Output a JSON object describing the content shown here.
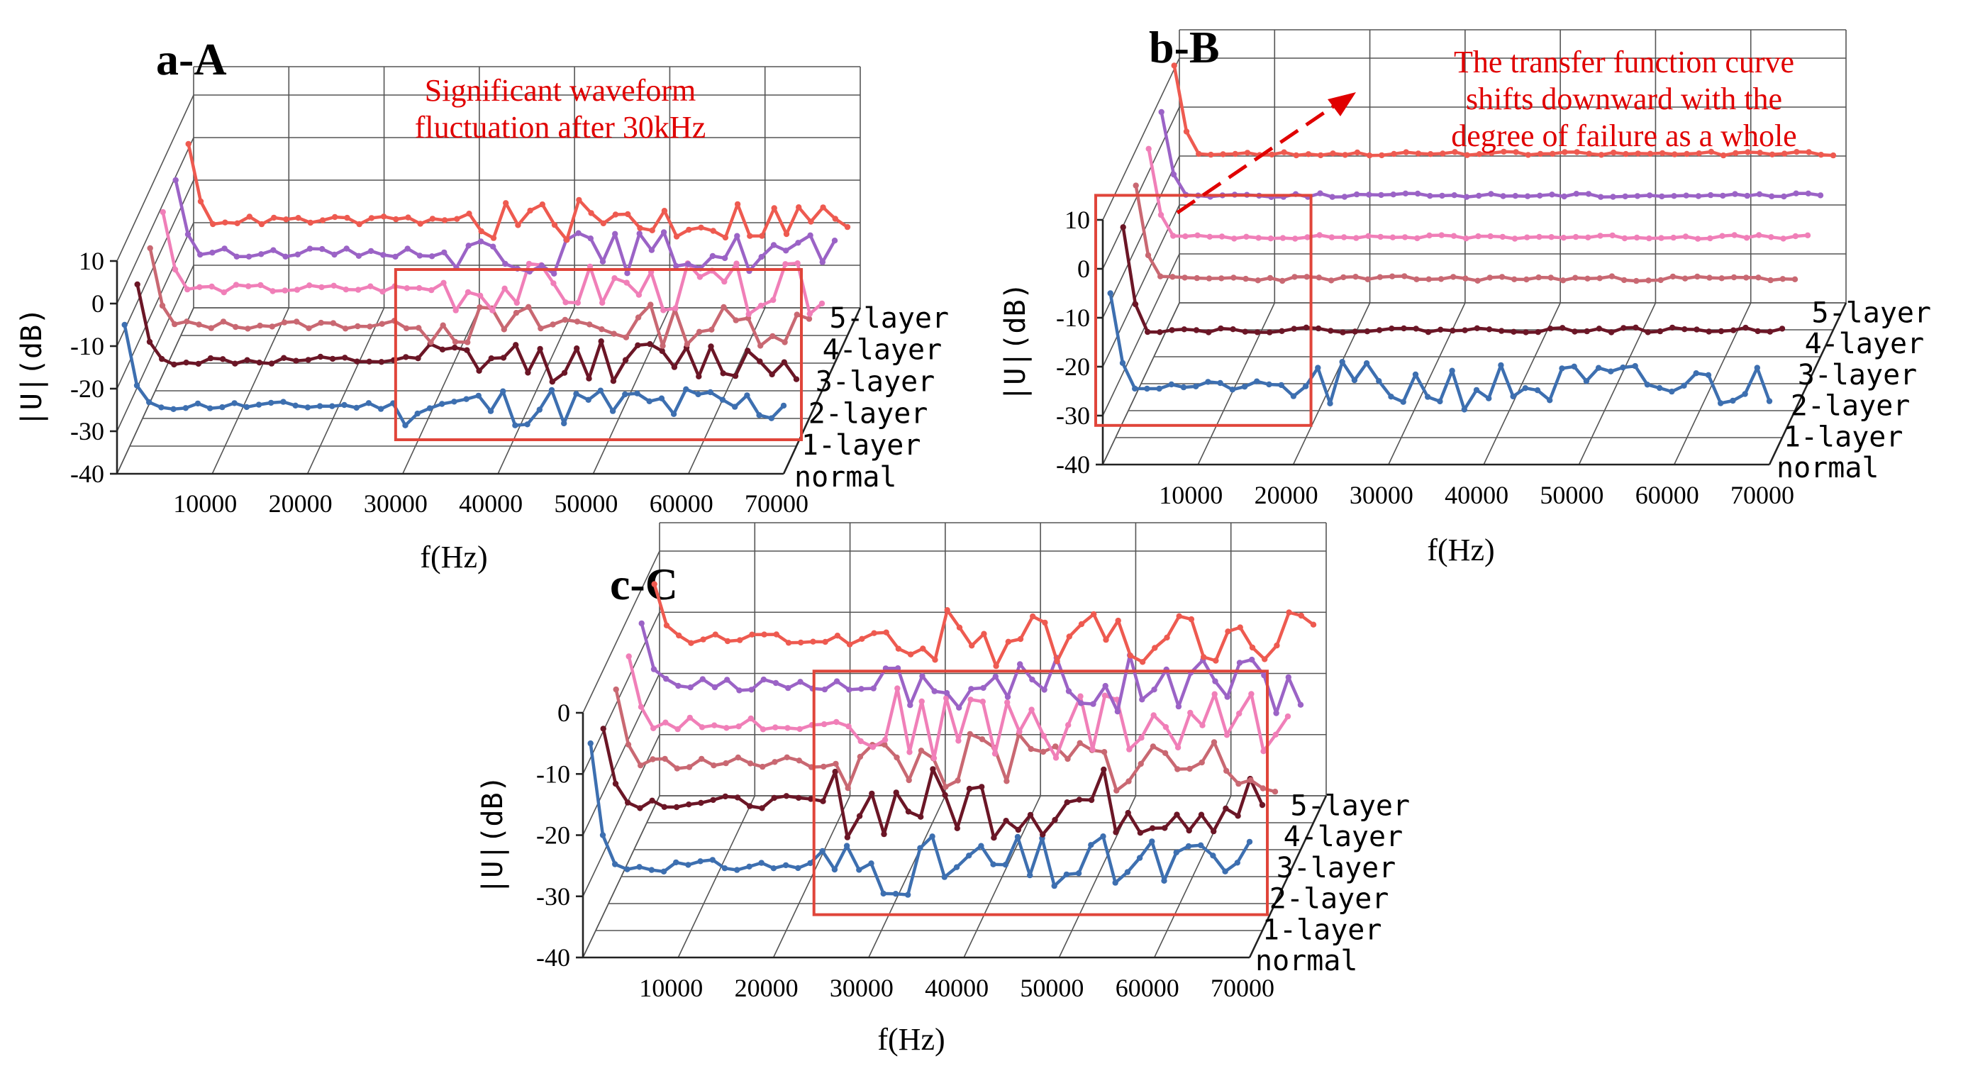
{
  "figure": {
    "caption_note": ""
  },
  "colors": {
    "normal": "#3d6fb0",
    "1-layer": "#6b1626",
    "2-layer": "#c96872",
    "3-layer": "#f07fb8",
    "4-layer": "#9b63c6",
    "5-layer": "#ee5a50",
    "annotation": "#e00000",
    "highlight_box": "#e0453a"
  },
  "chart_data": [
    {
      "type": "line",
      "title": "a-A",
      "xlabel": "f(Hz)",
      "zlabel": "|U|(dB)",
      "x_ticks": [
        "10000",
        "20000",
        "30000",
        "40000",
        "50000",
        "60000",
        "70000"
      ],
      "z_ticks": [
        "10",
        "0",
        "-10",
        "-20",
        "-30",
        "-40"
      ],
      "zlim": [
        -40,
        10
      ],
      "xlim": [
        0,
        70000
      ],
      "layers": [
        "normal",
        "1-layer",
        "2-layer",
        "3-layer",
        "4-layer",
        "5-layer"
      ],
      "annotation": {
        "lines": [
          "Significant waveform",
          "fluctuation after 30kHz"
        ]
      },
      "highlight_x_range": [
        30000,
        70000
      ],
      "series": [
        {
          "name": "normal",
          "start_dip": -5,
          "base": -24,
          "noise_before": 1,
          "noise_after": 5,
          "split": 30000,
          "seed": 11
        },
        {
          "name": "1-layer",
          "start_dip": -2,
          "base": -20,
          "noise_before": 1,
          "noise_after": 5,
          "split": 30000,
          "seed": 12
        },
        {
          "name": "2-layer",
          "start_dip": 0,
          "base": -18,
          "noise_before": 1,
          "noise_after": 5,
          "split": 30000,
          "seed": 13
        },
        {
          "name": "3-layer",
          "start_dip": 2,
          "base": -16,
          "noise_before": 1,
          "noise_after": 6,
          "split": 30000,
          "seed": 14
        },
        {
          "name": "4-layer",
          "start_dip": 3,
          "base": -14,
          "noise_before": 1,
          "noise_after": 5,
          "split": 30000,
          "seed": 15
        },
        {
          "name": "5-layer",
          "start_dip": 5,
          "base": -13,
          "noise_before": 1,
          "noise_after": 5,
          "split": 30000,
          "seed": 16
        }
      ]
    },
    {
      "type": "line",
      "title": "b-B",
      "xlabel": "f(Hz)",
      "zlabel": "|U|(dB)",
      "x_ticks": [
        "10000",
        "20000",
        "30000",
        "40000",
        "50000",
        "60000",
        "70000"
      ],
      "z_ticks": [
        "10",
        "0",
        "-10",
        "-20",
        "-30",
        "-40"
      ],
      "zlim": [
        -40,
        10
      ],
      "xlim": [
        0,
        70000
      ],
      "layers": [
        "normal",
        "1-layer",
        "2-layer",
        "3-layer",
        "4-layer",
        "5-layer"
      ],
      "annotation": {
        "lines": [
          "The transfer function curve",
          "shifts downward with the",
          "degree of failure as a whole"
        ]
      },
      "highlight_x_range": [
        0,
        20000
      ],
      "series": [
        {
          "name": "normal",
          "start_dip": -5,
          "base": -24,
          "noise_before": 1,
          "noise_after": 5,
          "split": 20000,
          "seed": 21
        },
        {
          "name": "1-layer",
          "start_dip": 3,
          "base": -18,
          "noise_before": 0.5,
          "noise_after": 0.5,
          "split": 20000,
          "seed": 22
        },
        {
          "name": "2-layer",
          "start_dip": 6,
          "base": -13,
          "noise_before": 0.5,
          "noise_after": 0.5,
          "split": 20000,
          "seed": 23
        },
        {
          "name": "3-layer",
          "start_dip": 8,
          "base": -10,
          "noise_before": 0.4,
          "noise_after": 0.4,
          "split": 20000,
          "seed": 24
        },
        {
          "name": "4-layer",
          "start_dip": 10,
          "base": -7,
          "noise_before": 0.4,
          "noise_after": 0.4,
          "split": 20000,
          "seed": 25
        },
        {
          "name": "5-layer",
          "start_dip": 14,
          "base": -4,
          "noise_before": 0.4,
          "noise_after": 0.4,
          "split": 20000,
          "seed": 26
        }
      ]
    },
    {
      "type": "line",
      "title": "c-C",
      "xlabel": "f(Hz)",
      "zlabel": "|U|(dB)",
      "x_ticks": [
        "10000",
        "20000",
        "30000",
        "40000",
        "50000",
        "60000",
        "70000"
      ],
      "z_ticks": [
        "0",
        "-10",
        "-20",
        "-30",
        "-40"
      ],
      "zlim": [
        -40,
        0
      ],
      "xlim": [
        0,
        70000
      ],
      "layers": [
        "normal",
        "1-layer",
        "2-layer",
        "3-layer",
        "4-layer",
        "5-layer"
      ],
      "annotation": {
        "lines": []
      },
      "highlight_x_range": [
        25000,
        70000
      ],
      "series": [
        {
          "name": "normal",
          "start_dip": -5,
          "base": -25,
          "noise_before": 1,
          "noise_after": 5,
          "split": 25000,
          "seed": 31
        },
        {
          "name": "1-layer",
          "start_dip": -7,
          "base": -19,
          "noise_before": 1,
          "noise_after": 6,
          "split": 25000,
          "seed": 32
        },
        {
          "name": "2-layer",
          "start_dip": -5,
          "base": -17,
          "noise_before": 1,
          "noise_after": 5,
          "split": 25000,
          "seed": 33
        },
        {
          "name": "3-layer",
          "start_dip": -4,
          "base": -15,
          "noise_before": 1,
          "noise_after": 6,
          "split": 25000,
          "seed": 34
        },
        {
          "name": "4-layer",
          "start_dip": -3,
          "base": -13,
          "noise_before": 1,
          "noise_after": 5,
          "split": 25000,
          "seed": 35
        },
        {
          "name": "5-layer",
          "start_dip": -1,
          "base": -10,
          "noise_before": 1,
          "noise_after": 5,
          "split": 25000,
          "seed": 36
        }
      ]
    }
  ]
}
